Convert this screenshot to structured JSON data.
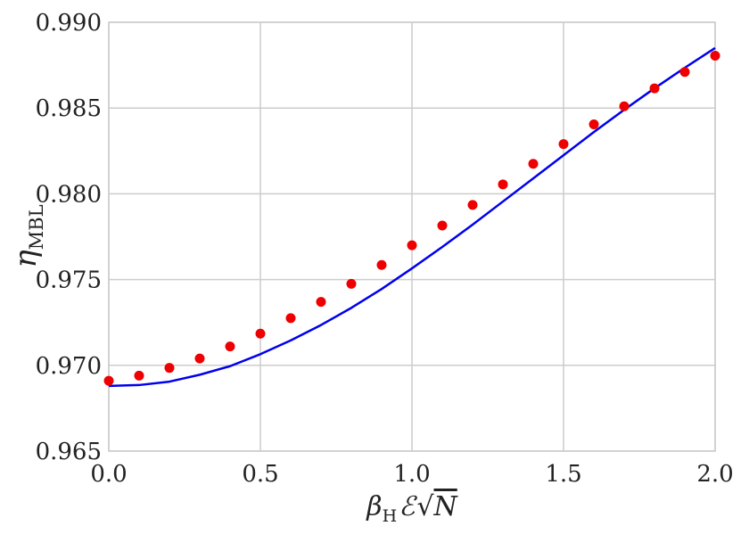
{
  "chart_data": {
    "type": "line",
    "xlabel_parts": {
      "beta": "β",
      "beta_sub": "H",
      "energy": "ℰ",
      "sqrt": "√",
      "n": "N"
    },
    "ylabel_parts": {
      "eta": "η",
      "eta_sub": "MBL"
    },
    "xlim": [
      0.0,
      2.0
    ],
    "ylim": [
      0.965,
      0.99
    ],
    "x_ticks": [
      0.0,
      0.5,
      1.0,
      1.5,
      2.0
    ],
    "x_tick_labels": [
      "0.0",
      "0.5",
      "1.0",
      "1.5",
      "2.0"
    ],
    "y_ticks": [
      0.965,
      0.97,
      0.975,
      0.98,
      0.985,
      0.99
    ],
    "y_tick_labels": [
      "0.965",
      "0.970",
      "0.975",
      "0.980",
      "0.985",
      "0.990"
    ],
    "grid": true,
    "colors": {
      "line": "#0000ee",
      "points": "#ee0000",
      "grid": "#cccccc"
    },
    "series": [
      {
        "style": "line",
        "x": [
          0.0,
          0.1,
          0.2,
          0.3,
          0.4,
          0.5,
          0.6,
          0.7,
          0.8,
          0.9,
          1.0,
          1.1,
          1.2,
          1.3,
          1.4,
          1.5,
          1.6,
          1.7,
          1.8,
          1.9,
          2.0
        ],
        "y": [
          0.9688,
          0.96885,
          0.96905,
          0.96945,
          0.96995,
          0.97065,
          0.97145,
          0.97235,
          0.97335,
          0.97445,
          0.97565,
          0.9769,
          0.9782,
          0.97955,
          0.9809,
          0.98225,
          0.9836,
          0.9849,
          0.98615,
          0.98735,
          0.9885
        ]
      },
      {
        "style": "scatter",
        "x": [
          0.0,
          0.1,
          0.2,
          0.3,
          0.4,
          0.5,
          0.6,
          0.7,
          0.8,
          0.9,
          1.0,
          1.1,
          1.2,
          1.3,
          1.4,
          1.5,
          1.6,
          1.7,
          1.8,
          1.9,
          2.0
        ],
        "y": [
          0.9691,
          0.9694,
          0.96985,
          0.9704,
          0.9711,
          0.97185,
          0.97275,
          0.9737,
          0.97475,
          0.97585,
          0.977,
          0.97815,
          0.97935,
          0.98055,
          0.98175,
          0.9829,
          0.98405,
          0.9851,
          0.98615,
          0.9871,
          0.98805
        ]
      }
    ]
  }
}
